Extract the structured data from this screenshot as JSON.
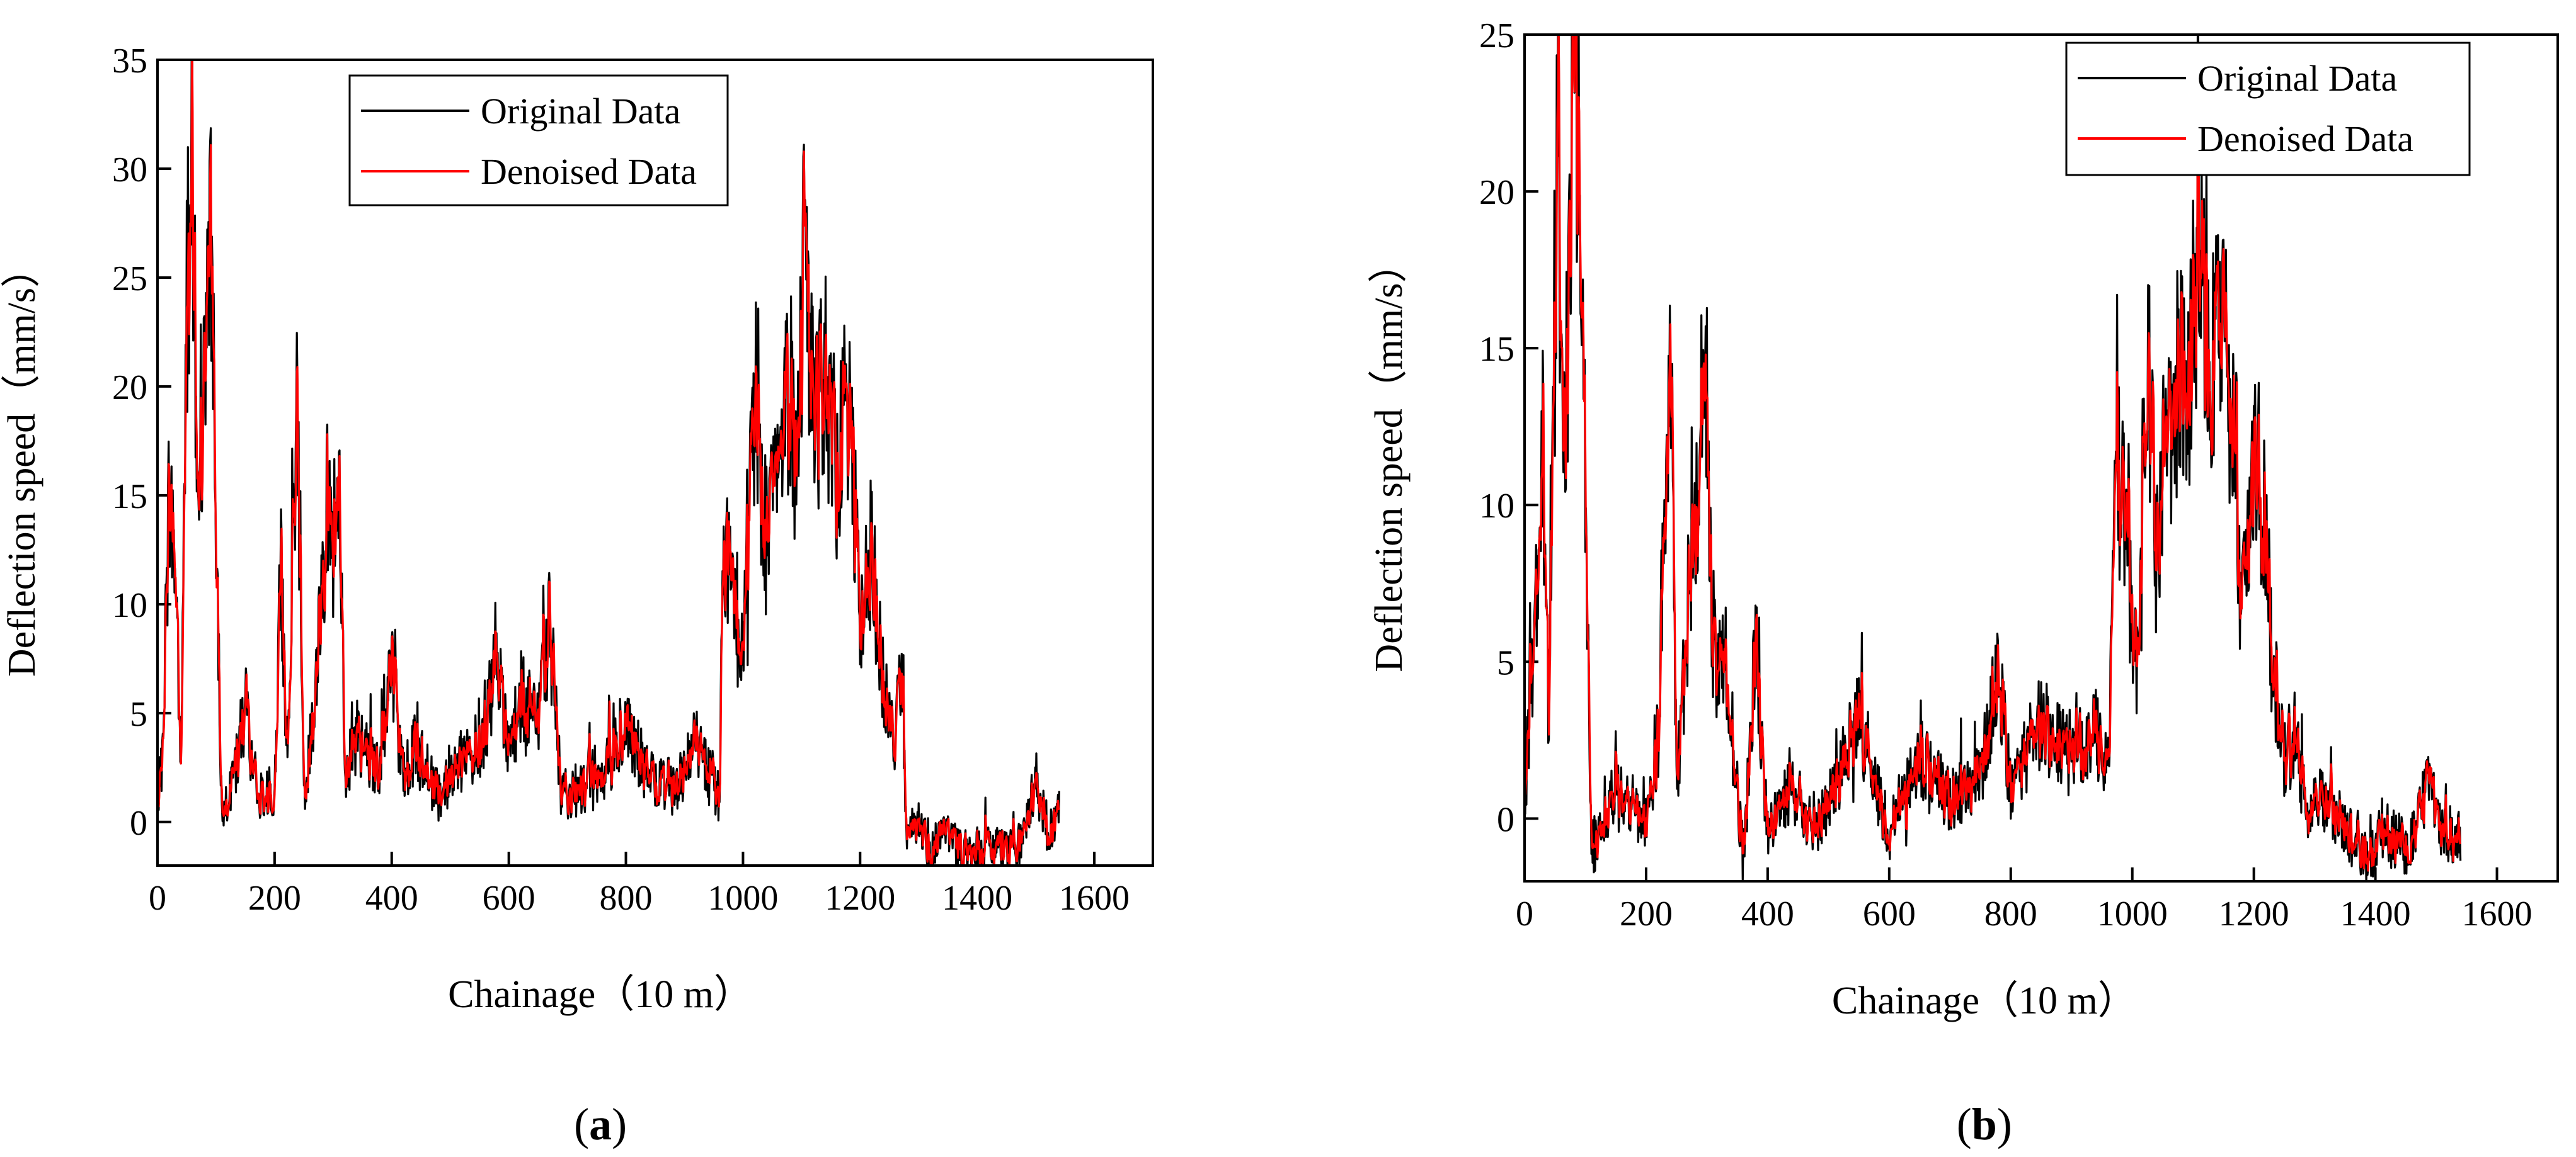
{
  "figure": {
    "panels": [
      {
        "label_open": "(",
        "label_letter": "a",
        "label_close": ")"
      },
      {
        "label_open": "(",
        "label_letter": "b",
        "label_close": ")"
      }
    ]
  },
  "chart_data": [
    {
      "type": "line",
      "panel": "a",
      "title": "",
      "xlabel": "Chainage（10  m）",
      "ylabel": "Deflection speed（mm/s）",
      "xlim": [
        0,
        1700
      ],
      "ylim": [
        -2,
        35
      ],
      "xticks": [
        0,
        200,
        400,
        600,
        800,
        1000,
        1200,
        1400,
        1600
      ],
      "yticks": [
        0,
        5,
        10,
        15,
        20,
        25,
        30,
        35
      ],
      "legend": {
        "position": "top-left",
        "entries": [
          "Original Data",
          "Denoised Data"
        ]
      },
      "series": [
        {
          "name": "Original Data",
          "color": "#000000"
        },
        {
          "name": "Denoised Data",
          "color": "#ff0000"
        }
      ],
      "envelope": [
        [
          0,
          1
        ],
        [
          10,
          3
        ],
        [
          20,
          16.5
        ],
        [
          30,
          12
        ],
        [
          40,
          2
        ],
        [
          50,
          24
        ],
        [
          60,
          28.5
        ],
        [
          70,
          14
        ],
        [
          80,
          20
        ],
        [
          90,
          30.8
        ],
        [
          100,
          12
        ],
        [
          110,
          1
        ],
        [
          120,
          0.5
        ],
        [
          150,
          5.5
        ],
        [
          170,
          1
        ],
        [
          200,
          1.5
        ],
        [
          210,
          12
        ],
        [
          220,
          3
        ],
        [
          240,
          19.5
        ],
        [
          250,
          1
        ],
        [
          270,
          6
        ],
        [
          290,
          14.5
        ],
        [
          300,
          12
        ],
        [
          310,
          17.5
        ],
        [
          320,
          2
        ],
        [
          340,
          4
        ],
        [
          380,
          2
        ],
        [
          400,
          7.2
        ],
        [
          420,
          2
        ],
        [
          440,
          3.5
        ],
        [
          480,
          1
        ],
        [
          520,
          2.8
        ],
        [
          560,
          4
        ],
        [
          580,
          8.3
        ],
        [
          600,
          3
        ],
        [
          620,
          6
        ],
        [
          650,
          4.5
        ],
        [
          670,
          9
        ],
        [
          690,
          1
        ],
        [
          720,
          1.5
        ],
        [
          760,
          2
        ],
        [
          800,
          4.5
        ],
        [
          840,
          2
        ],
        [
          880,
          1.5
        ],
        [
          920,
          3.5
        ],
        [
          960,
          1
        ],
        [
          965,
          14
        ],
        [
          980,
          11
        ],
        [
          1000,
          7
        ],
        [
          1020,
          19.5
        ],
        [
          1040,
          13
        ],
        [
          1060,
          16
        ],
        [
          1080,
          20.5
        ],
        [
          1090,
          15
        ],
        [
          1105,
          27.8
        ],
        [
          1120,
          17
        ],
        [
          1140,
          20
        ],
        [
          1160,
          16
        ],
        [
          1180,
          20
        ],
        [
          1200,
          9
        ],
        [
          1220,
          13
        ],
        [
          1240,
          6
        ],
        [
          1260,
          3
        ],
        [
          1270,
          7.5
        ],
        [
          1280,
          -1
        ],
        [
          1300,
          0
        ],
        [
          1320,
          -1.5
        ],
        [
          1340,
          -0.5
        ],
        [
          1380,
          -1.5
        ],
        [
          1420,
          -1
        ],
        [
          1450,
          -1.5
        ],
        [
          1480,
          -0.5
        ],
        [
          1500,
          2
        ],
        [
          1520,
          -0.8
        ],
        [
          1540,
          0.5
        ]
      ]
    },
    {
      "type": "line",
      "panel": "b",
      "title": "",
      "xlabel": "Chainage（10 m）",
      "ylabel": "Deflection speed（mm/s）",
      "xlim": [
        0,
        1700
      ],
      "ylim": [
        -2,
        25
      ],
      "xticks": [
        0,
        200,
        400,
        600,
        800,
        1000,
        1200,
        1400,
        1600
      ],
      "yticks": [
        0,
        5,
        10,
        15,
        20,
        25
      ],
      "legend": {
        "position": "top-right",
        "entries": [
          "Original Data",
          "Denoised Data"
        ]
      },
      "series": [
        {
          "name": "Original Data",
          "color": "#000000"
        },
        {
          "name": "Denoised Data",
          "color": "#ff0000"
        }
      ],
      "envelope": [
        [
          0,
          0.5
        ],
        [
          15,
          6
        ],
        [
          30,
          12
        ],
        [
          40,
          3
        ],
        [
          55,
          22
        ],
        [
          65,
          11
        ],
        [
          75,
          18
        ],
        [
          85,
          23.8
        ],
        [
          95,
          16.5
        ],
        [
          110,
          -1
        ],
        [
          150,
          1
        ],
        [
          200,
          0
        ],
        [
          220,
          2.5
        ],
        [
          240,
          15.5
        ],
        [
          250,
          1
        ],
        [
          280,
          10
        ],
        [
          300,
          14.7
        ],
        [
          310,
          5
        ],
        [
          330,
          5.5
        ],
        [
          360,
          -1.5
        ],
        [
          380,
          5.5
        ],
        [
          400,
          -0.5
        ],
        [
          440,
          1
        ],
        [
          480,
          -0.5
        ],
        [
          520,
          1.5
        ],
        [
          550,
          3.2
        ],
        [
          600,
          -0.5
        ],
        [
          650,
          2
        ],
        [
          700,
          0.5
        ],
        [
          750,
          1.5
        ],
        [
          780,
          4.5
        ],
        [
          800,
          1
        ],
        [
          850,
          3
        ],
        [
          900,
          2
        ],
        [
          940,
          3
        ],
        [
          960,
          1.5
        ],
        [
          975,
          11.5
        ],
        [
          990,
          9
        ],
        [
          1010,
          4
        ],
        [
          1025,
          14.8
        ],
        [
          1040,
          9
        ],
        [
          1060,
          12
        ],
        [
          1080,
          15.5
        ],
        [
          1090,
          12
        ],
        [
          1110,
          19.8
        ],
        [
          1130,
          15
        ],
        [
          1150,
          15.5
        ],
        [
          1170,
          12
        ],
        [
          1180,
          6
        ],
        [
          1200,
          11
        ],
        [
          1215,
          10.5
        ],
        [
          1230,
          5
        ],
        [
          1250,
          2
        ],
        [
          1270,
          2.5
        ],
        [
          1290,
          -0.5
        ],
        [
          1300,
          1
        ],
        [
          1340,
          0
        ],
        [
          1380,
          -1
        ],
        [
          1420,
          -0.5
        ],
        [
          1460,
          -1
        ],
        [
          1490,
          1.5
        ],
        [
          1510,
          -0.5
        ],
        [
          1540,
          -0.5
        ]
      ]
    }
  ]
}
